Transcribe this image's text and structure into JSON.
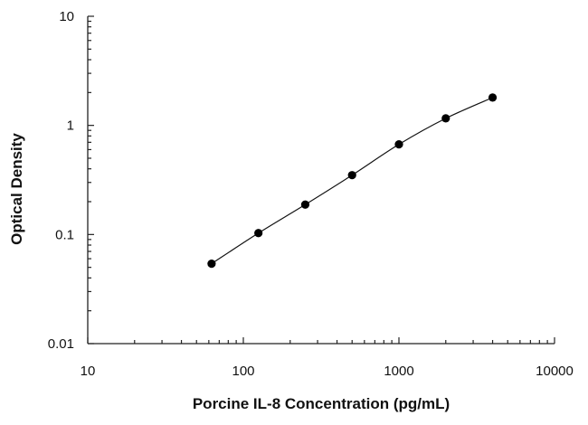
{
  "chart_data": {
    "type": "scatter",
    "xlabel": "Porcine IL-8 Concentration (pg/mL)",
    "ylabel": "Optical Density",
    "x_scale": "log",
    "y_scale": "log",
    "xlim": [
      10,
      10000
    ],
    "ylim": [
      0.01,
      10
    ],
    "x_ticks": [
      10,
      100,
      1000,
      10000
    ],
    "x_tick_labels": [
      "10",
      "100",
      "1000",
      "10000"
    ],
    "y_ticks": [
      0.01,
      0.1,
      1,
      10
    ],
    "y_tick_labels": [
      "0.01",
      "0.1",
      "1",
      "10"
    ],
    "grid": false,
    "series": [
      {
        "x": [
          62.5,
          125,
          250,
          500,
          1000,
          2000,
          4000
        ],
        "y": [
          0.054,
          0.103,
          0.188,
          0.35,
          0.67,
          1.16,
          1.8
        ],
        "fit_curve": true
      }
    ]
  }
}
